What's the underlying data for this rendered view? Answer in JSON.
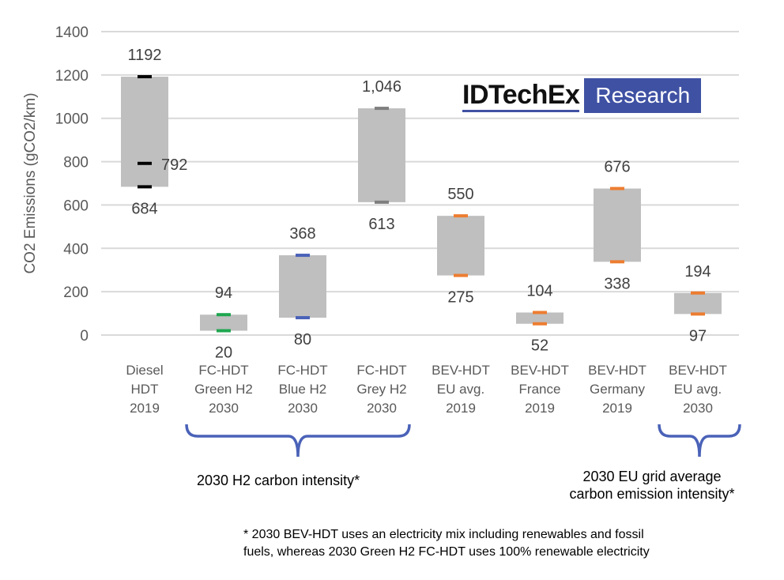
{
  "chart_data": {
    "type": "floating-bar",
    "ylabel": "CO2 Emissions (gCO2/km)",
    "ylim": [
      0,
      1400
    ],
    "yticks": [
      0,
      200,
      400,
      600,
      800,
      1000,
      1200,
      1400
    ],
    "grid": true,
    "categories": [
      [
        "Diesel",
        "HDT",
        "2019"
      ],
      [
        "FC-HDT",
        "Green H2",
        "2030"
      ],
      [
        "FC-HDT",
        "Blue H2",
        "2030"
      ],
      [
        "FC-HDT",
        "Grey H2",
        "2030"
      ],
      [
        "BEV-HDT",
        "EU avg.",
        "2019"
      ],
      [
        "BEV-HDT",
        "France",
        "2019"
      ],
      [
        "BEV-HDT",
        "Germany",
        "2019"
      ],
      [
        "BEV-HDT",
        "EU avg.",
        "2030"
      ]
    ],
    "ranges": [
      {
        "low": 684,
        "high": 1192,
        "mid": 792,
        "low_label": "684",
        "high_label": "1192",
        "mid_label": "792",
        "marker_color": "#000000"
      },
      {
        "low": 20,
        "high": 94,
        "low_label": "20",
        "high_label": "94",
        "marker_color": "#1fa650"
      },
      {
        "low": 80,
        "high": 368,
        "low_label": "80",
        "high_label": "368",
        "marker_color": "#4a62b8"
      },
      {
        "low": 613,
        "high": 1046,
        "low_label": "613",
        "high_label": "1,046",
        "marker_color": "#7f7f7f"
      },
      {
        "low": 275,
        "high": 550,
        "low_label": "275",
        "high_label": "550",
        "marker_color": "#ed7d31"
      },
      {
        "low": 52,
        "high": 104,
        "low_label": "52",
        "high_label": "104",
        "marker_color": "#ed7d31"
      },
      {
        "low": 338,
        "high": 676,
        "low_label": "338",
        "high_label": "676",
        "marker_color": "#ed7d31"
      },
      {
        "low": 97,
        "high": 194,
        "low_label": "97",
        "high_label": "194",
        "marker_color": "#ed7d31"
      }
    ],
    "bar_color": "#bfbfbf",
    "annotations": {
      "group1": "2030 H2 carbon intensity*",
      "group2": [
        "2030 EU grid average",
        "carbon emission intensity*"
      ],
      "footnote": [
        "* 2030 BEV-HDT uses an electricity mix including renewables and fossil",
        "fuels, whereas 2030 Green H2 FC-HDT uses 100% renewable electricity"
      ]
    }
  },
  "logo": {
    "brand": "IDTechEx",
    "tag": "Research",
    "color": "#3f51a3"
  },
  "brace_color": "#4a62b8"
}
